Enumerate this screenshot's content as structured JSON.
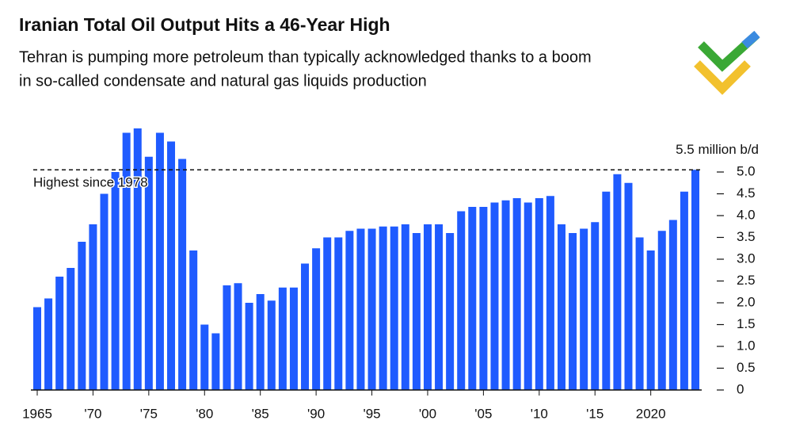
{
  "chart_data": {
    "type": "bar",
    "title": "Iranian Total Oil Output Hits a 46-Year High",
    "subtitle": [
      "Tehran is pumping more petroleum than typically acknowledged thanks to a boom",
      "in so-called condensate and natural gas liquids production"
    ],
    "categories": [
      "1965",
      null,
      null,
      null,
      null,
      "'70",
      null,
      null,
      null,
      null,
      "'75",
      null,
      null,
      null,
      null,
      "'80",
      null,
      null,
      null,
      null,
      "'85",
      null,
      null,
      null,
      null,
      "'90",
      null,
      null,
      null,
      null,
      "'95",
      null,
      null,
      null,
      null,
      "'00",
      null,
      null,
      null,
      null,
      "'05",
      null,
      null,
      null,
      null,
      "'10",
      null,
      null,
      null,
      null,
      "'15",
      null,
      null,
      null,
      null,
      "2020",
      null,
      null,
      null,
      null
    ],
    "values": [
      1.9,
      2.1,
      2.6,
      2.8,
      3.4,
      3.8,
      4.5,
      5.0,
      5.9,
      6.0,
      5.35,
      5.9,
      5.7,
      5.3,
      3.2,
      1.5,
      1.3,
      2.4,
      2.45,
      2.0,
      2.2,
      2.05,
      2.35,
      2.35,
      2.9,
      3.25,
      3.5,
      3.5,
      3.65,
      3.7,
      3.7,
      3.75,
      3.75,
      3.8,
      3.6,
      3.8,
      3.8,
      3.6,
      4.1,
      4.2,
      4.2,
      4.3,
      4.35,
      4.4,
      4.3,
      4.4,
      4.45,
      3.8,
      3.6,
      3.7,
      3.85,
      4.55,
      4.95,
      4.75,
      3.5,
      3.2,
      3.65,
      3.9,
      4.55,
      5.05
    ],
    "color": "#1f5bff",
    "ylim": [
      0,
      6.1
    ],
    "yticks": [
      0,
      0.5,
      {
        "value": 1,
        "label": "1.0"
      },
      1.5,
      {
        "value": 2,
        "label": "2.0"
      },
      2.5,
      {
        "value": 3,
        "label": "3.0"
      },
      3.5,
      {
        "value": 4,
        "label": "4.0"
      },
      4.5,
      {
        "value": 5,
        "label": "5.0"
      },
      {
        "value": 5.5,
        "label": "5.5 million b/d"
      }
    ],
    "annotation": {
      "text": "Highest since 1978",
      "value": 5.05
    }
  }
}
